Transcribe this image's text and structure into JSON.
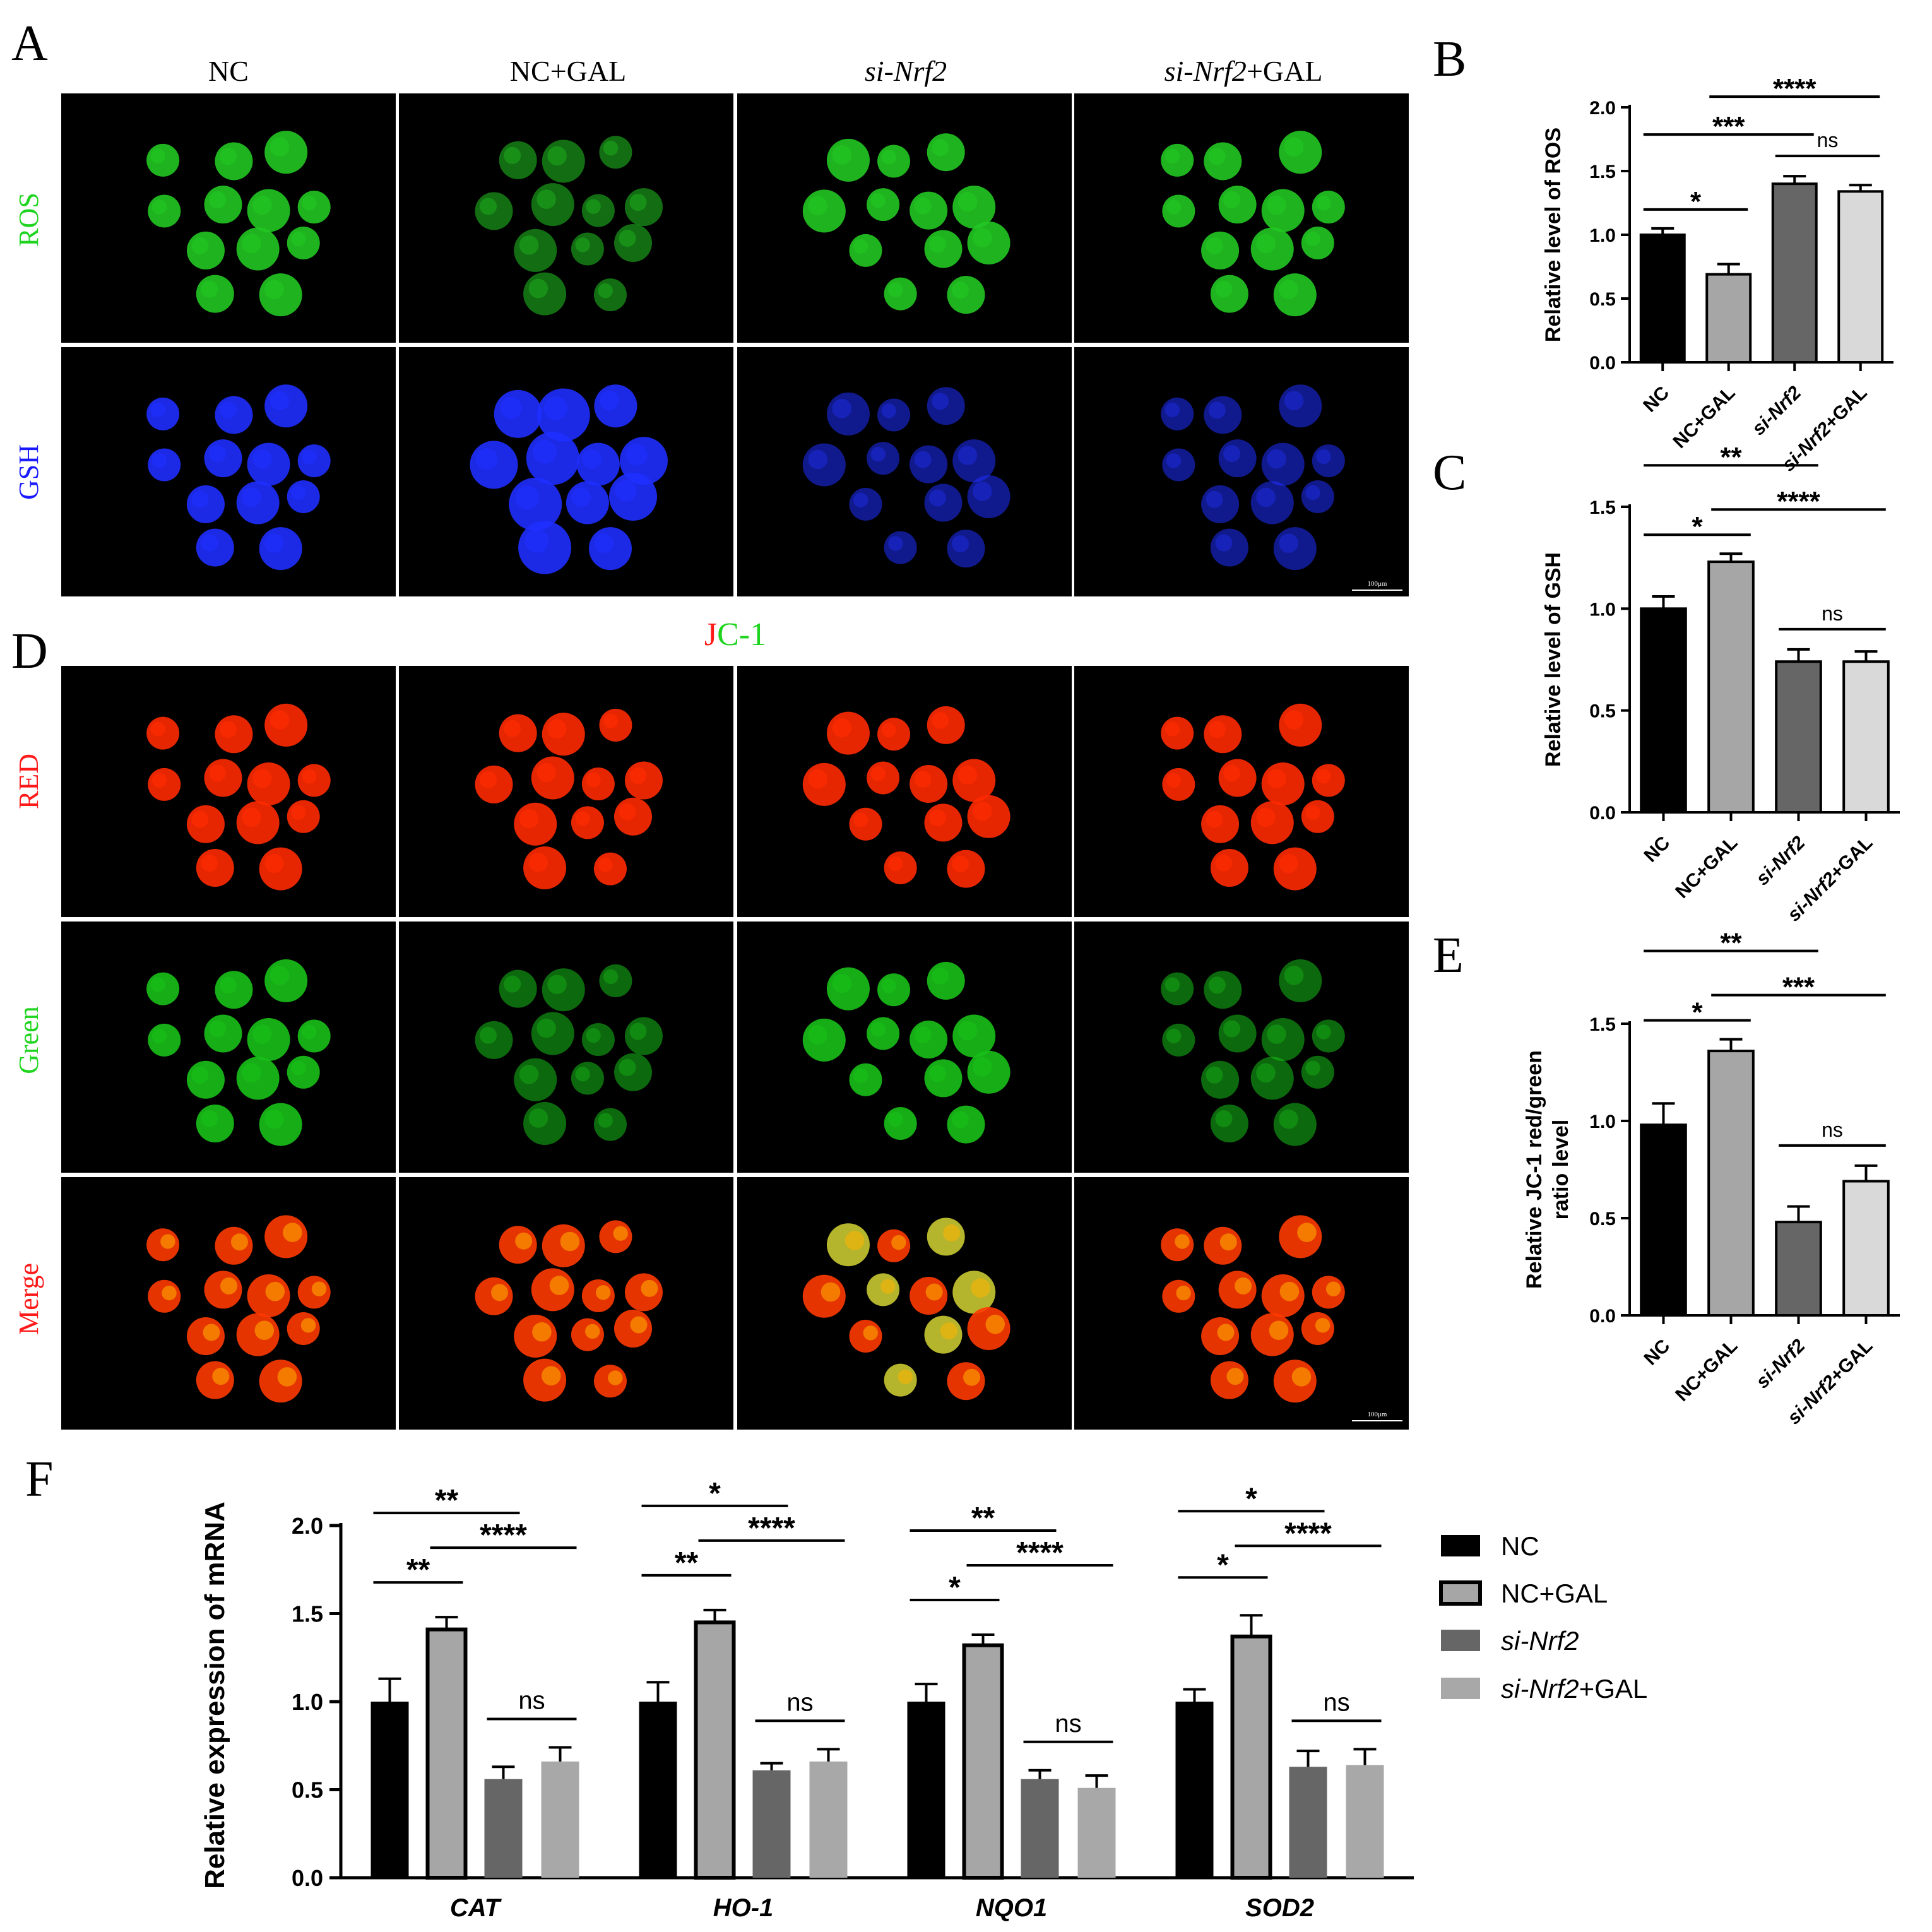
{
  "panels": {
    "A": "A",
    "B": "B",
    "C": "C",
    "D": "D",
    "E": "E",
    "F": "F"
  },
  "groups": [
    {
      "prefix": "",
      "gene": "",
      "suffix": "NC"
    },
    {
      "prefix": "",
      "gene": "",
      "suffix": "NC+GAL"
    },
    {
      "prefix": "si-",
      "gene": "Nrf2",
      "suffix": ""
    },
    {
      "prefix": "si-",
      "gene": "Nrf2",
      "suffix": "+GAL"
    }
  ],
  "panel_a": {
    "rows": [
      {
        "label": "ROS",
        "color": "#1fd41f"
      },
      {
        "label": "GSH",
        "color": "#1a1aff"
      }
    ],
    "scale_bar": "100μm"
  },
  "panel_d": {
    "title_red": "J",
    "title_green": "C-1",
    "rows": [
      {
        "label": "RED",
        "color": "#ff1a1a"
      },
      {
        "label": "Green",
        "color": "#1fd41f"
      },
      {
        "label": "Merge",
        "color": "#ff1a1a"
      }
    ],
    "scale_bar": "100μm"
  },
  "colors": {
    "nc": "#000000",
    "nc_gal": "#a6a6a6",
    "si": "#666666",
    "si_gal": "#d9d9d9",
    "si_gal_F": "#a8a8a8",
    "ros": "#22c822",
    "gsh": "#1f2fff",
    "red": "#ff2a00",
    "green": "#18c018"
  },
  "chart_data": [
    {
      "id": "B",
      "type": "bar",
      "ylabel": "Relative level of ROS",
      "ylim": [
        0,
        2.0
      ],
      "yticks": [
        "0.0",
        "0.5",
        "1.0",
        "1.5",
        "2.0"
      ],
      "categories": [
        "NC",
        "NC+GAL",
        "si-Nrf2",
        "si-Nrf2+GAL"
      ],
      "values": [
        1.0,
        0.69,
        1.4,
        1.34
      ],
      "errors": [
        0.05,
        0.08,
        0.06,
        0.05
      ],
      "significance": [
        {
          "from": 0,
          "to": 1,
          "label": "*"
        },
        {
          "from": 0,
          "to": 2,
          "label": "***"
        },
        {
          "from": 2,
          "to": 3,
          "label": "ns"
        },
        {
          "from": 1,
          "to": 3,
          "label": "****"
        }
      ]
    },
    {
      "id": "C",
      "type": "bar",
      "ylabel": "Relative level of GSH",
      "ylim": [
        0,
        1.5
      ],
      "yticks": [
        "0.0",
        "0.5",
        "1.0",
        "1.5"
      ],
      "categories": [
        "NC",
        "NC+GAL",
        "si-Nrf2",
        "si-Nrf2+GAL"
      ],
      "values": [
        1.0,
        1.23,
        0.74,
        0.74
      ],
      "errors": [
        0.06,
        0.04,
        0.06,
        0.05
      ],
      "significance": [
        {
          "from": 0,
          "to": 1,
          "label": "*"
        },
        {
          "from": 0,
          "to": 2,
          "label": "**"
        },
        {
          "from": 1,
          "to": 3,
          "label": "****"
        },
        {
          "from": 2,
          "to": 3,
          "label": "ns"
        }
      ]
    },
    {
      "id": "E",
      "type": "bar",
      "ylabel_line1": "Relative JC-1 red/green",
      "ylabel_line2": "ratio level",
      "ylim": [
        0,
        1.5
      ],
      "yticks": [
        "0.0",
        "0.5",
        "1.0",
        "1.5"
      ],
      "categories": [
        "NC",
        "NC+GAL",
        "si-Nrf2",
        "si-Nrf2+GAL"
      ],
      "values": [
        0.98,
        1.36,
        0.48,
        0.69
      ],
      "errors": [
        0.11,
        0.06,
        0.08,
        0.08
      ],
      "significance": [
        {
          "from": 0,
          "to": 1,
          "label": "*"
        },
        {
          "from": 0,
          "to": 2,
          "label": "**"
        },
        {
          "from": 1,
          "to": 3,
          "label": "***"
        },
        {
          "from": 2,
          "to": 3,
          "label": "ns"
        }
      ]
    },
    {
      "id": "F",
      "type": "bar",
      "ylabel": "Relative  expression of mRNA",
      "ylim": [
        0,
        2.0
      ],
      "yticks": [
        "0.0",
        "0.5",
        "1.0",
        "1.5",
        "2.0"
      ],
      "categories": [
        "CAT",
        "HO-1",
        "NQO1",
        "SOD2"
      ],
      "series": [
        {
          "name": "NC",
          "values": [
            1.0,
            1.0,
            1.0,
            1.0
          ],
          "errors": [
            0.13,
            0.11,
            0.1,
            0.07
          ]
        },
        {
          "name": "NC+GAL",
          "values": [
            1.41,
            1.45,
            1.32,
            1.37
          ],
          "errors": [
            0.07,
            0.07,
            0.06,
            0.12
          ]
        },
        {
          "name": "si-Nrf2",
          "values": [
            0.56,
            0.61,
            0.56,
            0.63
          ],
          "errors": [
            0.07,
            0.04,
            0.05,
            0.09
          ]
        },
        {
          "name": "si-Nrf2+GAL",
          "values": [
            0.66,
            0.66,
            0.51,
            0.64
          ],
          "errors": [
            0.08,
            0.07,
            0.07,
            0.09
          ]
        }
      ],
      "significance": [
        [
          {
            "from": 0,
            "to": 1,
            "label": "**"
          },
          {
            "from": 0,
            "to": 2,
            "label": "**"
          },
          {
            "from": 1,
            "to": 3,
            "label": "****"
          },
          {
            "from": 2,
            "to": 3,
            "label": "ns"
          }
        ],
        [
          {
            "from": 0,
            "to": 1,
            "label": "**"
          },
          {
            "from": 0,
            "to": 2,
            "label": "*"
          },
          {
            "from": 1,
            "to": 3,
            "label": "****"
          },
          {
            "from": 2,
            "to": 3,
            "label": "ns"
          }
        ],
        [
          {
            "from": 0,
            "to": 1,
            "label": "*"
          },
          {
            "from": 0,
            "to": 2,
            "label": "**"
          },
          {
            "from": 1,
            "to": 3,
            "label": "****"
          },
          {
            "from": 2,
            "to": 3,
            "label": "ns"
          }
        ],
        [
          {
            "from": 0,
            "to": 1,
            "label": "*"
          },
          {
            "from": 0,
            "to": 2,
            "label": "*"
          },
          {
            "from": 1,
            "to": 3,
            "label": "****"
          },
          {
            "from": 2,
            "to": 3,
            "label": "ns"
          }
        ]
      ],
      "legend": [
        {
          "prefix": "",
          "gene": "",
          "suffix": "NC"
        },
        {
          "prefix": "",
          "gene": "",
          "suffix": "NC+GAL"
        },
        {
          "prefix": "si-",
          "gene": "Nrf2",
          "suffix": ""
        },
        {
          "prefix": "si-",
          "gene": "Nrf2",
          "suffix": "+GAL"
        }
      ],
      "legend_position": "right"
    }
  ]
}
